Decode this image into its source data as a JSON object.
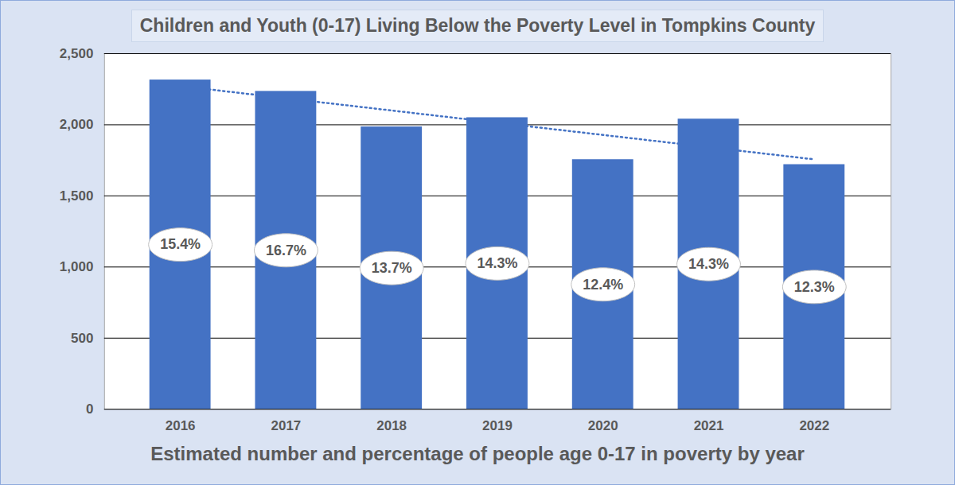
{
  "chart_data": {
    "type": "bar",
    "title": "Children and Youth (0-17) Living Below the Poverty Level in Tompkins County",
    "x_label": "Estimated number and percentage of people age 0-17 in poverty by year",
    "categories": [
      "2016",
      "2017",
      "2018",
      "2019",
      "2020",
      "2021",
      "2022"
    ],
    "values": [
      2315,
      2235,
      1985,
      2050,
      1755,
      2040,
      1720
    ],
    "percent_labels": [
      "15.4%",
      "16.7%",
      "13.7%",
      "14.3%",
      "12.4%",
      "14.3%",
      "12.3%"
    ],
    "color": "#4472c4",
    "ylim": [
      0,
      2500
    ],
    "yticks": [
      0,
      500,
      {
        "value": 1000,
        "label": "1,000"
      },
      {
        "value": 1500,
        "label": "1,500"
      },
      {
        "value": 2000,
        "label": "2,000"
      },
      {
        "value": 2500,
        "label": "2,500"
      }
    ],
    "grid": true
  }
}
